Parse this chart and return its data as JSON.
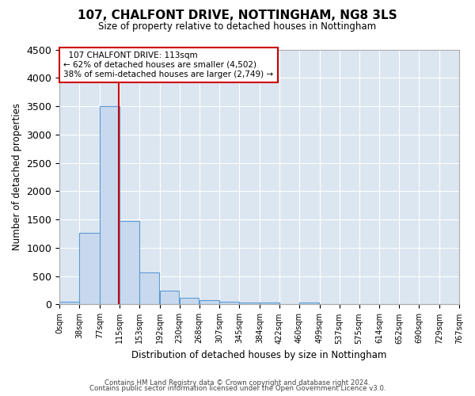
{
  "title": "107, CHALFONT DRIVE, NOTTINGHAM, NG8 3LS",
  "subtitle": "Size of property relative to detached houses in Nottingham",
  "xlabel": "Distribution of detached houses by size in Nottingham",
  "ylabel": "Number of detached properties",
  "bar_color": "#c9d9ed",
  "bar_edge_color": "#5b9bd5",
  "plot_bg_color": "#dce6f1",
  "background_color": "#ffffff",
  "grid_color": "#ffffff",
  "annotation_box_color": "#cc0000",
  "property_line_color": "#cc0000",
  "property_sqm": 113,
  "property_label": "107 CHALFONT DRIVE: 113sqm",
  "smaller_pct": "62%",
  "smaller_count": "4,502",
  "larger_pct": "38%",
  "larger_count": "2,749",
  "bin_edges": [
    0,
    38,
    77,
    115,
    153,
    192,
    230,
    268,
    307,
    345,
    384,
    422,
    460,
    499,
    537,
    575,
    614,
    652,
    690,
    729,
    767
  ],
  "bar_heights": [
    45,
    1270,
    3500,
    1470,
    570,
    240,
    115,
    80,
    55,
    40,
    30,
    0,
    40,
    0,
    0,
    0,
    0,
    0,
    0,
    0
  ],
  "ylim": [
    0,
    4500
  ],
  "yticks": [
    0,
    500,
    1000,
    1500,
    2000,
    2500,
    3000,
    3500,
    4000,
    4500
  ],
  "footer_line1": "Contains HM Land Registry data © Crown copyright and database right 2024.",
  "footer_line2": "Contains public sector information licensed under the Open Government Licence v3.0."
}
